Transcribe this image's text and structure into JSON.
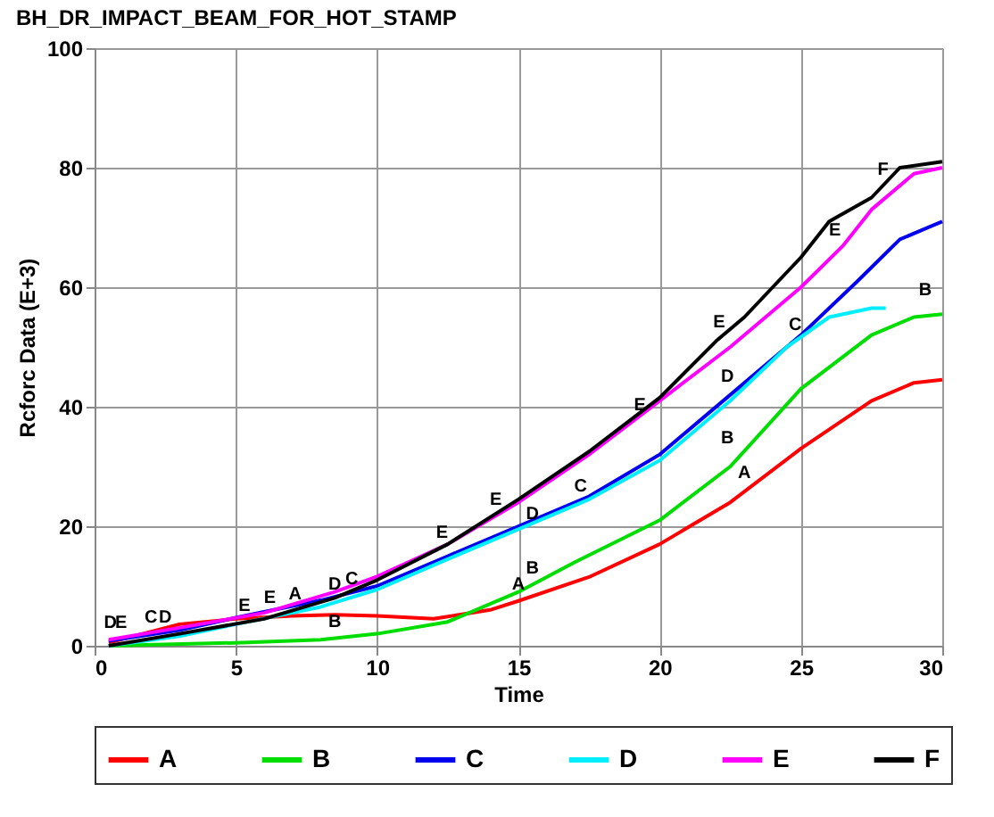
{
  "chart_data": {
    "type": "line",
    "title": "BH_DR_IMPACT_BEAM_FOR_HOT_STAMP",
    "xlabel": "Time",
    "ylabel": "Rcforc Data (E+3)",
    "xlim": [
      0,
      30
    ],
    "ylim": [
      0,
      100
    ],
    "xticks": [
      0,
      5,
      10,
      15,
      20,
      25,
      30
    ],
    "yticks": [
      0,
      20,
      40,
      60,
      80,
      100
    ],
    "grid": true,
    "legend": "bottom",
    "marker": "none",
    "line_style": "solid",
    "series": [
      {
        "name": "A",
        "color": "#ff0000",
        "x": [
          0.5,
          3,
          5,
          7,
          8.5,
          10,
          12,
          14,
          15,
          17.5,
          20,
          22.5,
          25,
          27.5,
          29,
          30
        ],
        "values": [
          0.5,
          3.6,
          4.5,
          5,
          5.2,
          5,
          4.5,
          6,
          7.5,
          11.5,
          17,
          24,
          33,
          41,
          44,
          44.5
        ]
      },
      {
        "name": "B",
        "color": "#00dd00",
        "x": [
          0.5,
          5,
          8,
          10,
          12.5,
          15,
          17,
          20,
          22.5,
          25,
          27.5,
          29,
          30
        ],
        "values": [
          0,
          0.5,
          1,
          2,
          4,
          9,
          14,
          21,
          30,
          43,
          52,
          55,
          55.5
        ]
      },
      {
        "name": "C",
        "color": "#0000ee",
        "x": [
          0.5,
          3,
          5,
          8,
          10,
          12.5,
          15,
          17.5,
          20,
          22.5,
          25,
          27,
          28.5,
          30
        ],
        "values": [
          0.8,
          2.6,
          4.7,
          7.6,
          10,
          15,
          20,
          25,
          32,
          42,
          52,
          61,
          68,
          71
        ]
      },
      {
        "name": "D",
        "color": "#00eeff",
        "x": [
          0.5,
          3,
          5,
          8,
          10,
          12.5,
          15,
          17.5,
          20,
          22.5,
          24.5,
          26,
          27.5,
          28
        ],
        "values": [
          0,
          1.6,
          3.6,
          6.5,
          9.4,
          14.5,
          19.5,
          24.5,
          31,
          41,
          50,
          55,
          56.5,
          56.5
        ]
      },
      {
        "name": "E",
        "color": "#ff00ff",
        "x": [
          0.5,
          3,
          6,
          8.5,
          10,
          12.5,
          15,
          17.5,
          20,
          22.5,
          25,
          26.5,
          27.5,
          29,
          30
        ],
        "values": [
          1,
          3,
          5.5,
          9,
          11.6,
          17,
          24,
          32,
          41,
          50,
          60,
          67,
          73,
          79,
          80
        ]
      },
      {
        "name": "F",
        "color": "#000000",
        "x": [
          0.5,
          3,
          6,
          8.5,
          10,
          12.5,
          15,
          17.5,
          20,
          22,
          23,
          24,
          25,
          26,
          27.5,
          28.5,
          30
        ],
        "values": [
          0,
          2,
          4.5,
          8,
          11,
          17,
          24.5,
          32.5,
          41.5,
          51,
          55,
          60,
          65,
          71,
          75,
          80,
          81
        ]
      }
    ],
    "annotations": [
      {
        "text": "D",
        "x": 0.56,
        "y": 1.2
      },
      {
        "text": "E",
        "x": 0.94,
        "y": 1.2
      },
      {
        "text": "C",
        "x": 2.0,
        "y": 2.1
      },
      {
        "text": "D",
        "x": 2.5,
        "y": 2.1
      },
      {
        "text": "E",
        "x": 5.3,
        "y": 4.1
      },
      {
        "text": "E",
        "x": 6.2,
        "y": 5.3
      },
      {
        "text": "A",
        "x": 7.1,
        "y": 5.9
      },
      {
        "text": "D",
        "x": 8.5,
        "y": 7.6
      },
      {
        "text": "C",
        "x": 9.1,
        "y": 8.5
      },
      {
        "text": "B",
        "x": 8.5,
        "y": 1.3
      },
      {
        "text": "E",
        "x": 12.3,
        "y": 16.2
      },
      {
        "text": "E",
        "x": 14.2,
        "y": 21.8
      },
      {
        "text": "B",
        "x": 15.5,
        "y": 10.3
      },
      {
        "text": "A",
        "x": 15.0,
        "y": 7.6
      },
      {
        "text": "D",
        "x": 15.5,
        "y": 19.4
      },
      {
        "text": "C",
        "x": 17.2,
        "y": 24.1
      },
      {
        "text": "E",
        "x": 19.3,
        "y": 37.6
      },
      {
        "text": "A",
        "x": 23.0,
        "y": 26.2
      },
      {
        "text": "B",
        "x": 22.4,
        "y": 32.1
      },
      {
        "text": "D",
        "x": 22.4,
        "y": 42.4
      },
      {
        "text": "E",
        "x": 22.1,
        "y": 51.5
      },
      {
        "text": "C",
        "x": 24.8,
        "y": 51
      },
      {
        "text": "E",
        "x": 26.2,
        "y": 66.8
      },
      {
        "text": "F",
        "x": 27.9,
        "y": 77
      },
      {
        "text": "B",
        "x": 29.4,
        "y": 56.8
      }
    ]
  }
}
